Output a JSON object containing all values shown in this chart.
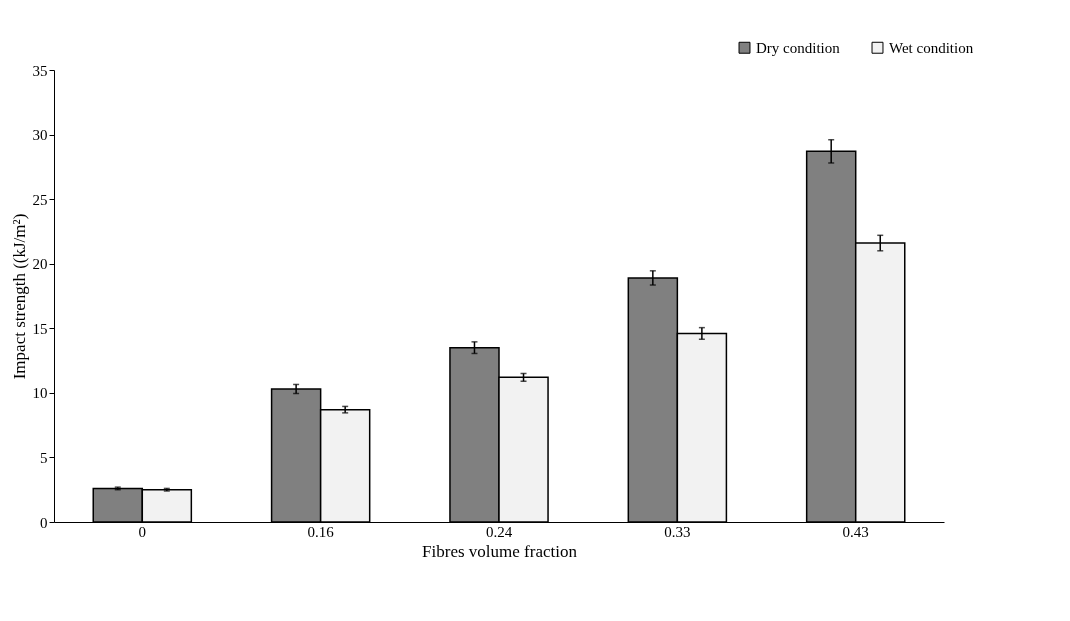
{
  "chart_data": {
    "type": "bar",
    "xlabel": "Fibres volume fraction",
    "ylabel": "Impact strength ((kJ/m²)",
    "categories": [
      "0",
      "0.16",
      "0.24",
      "0.33",
      "0.43"
    ],
    "series": [
      {
        "name": "Dry condition",
        "color": "#808080",
        "values": [
          2.6,
          10.3,
          13.5,
          18.9,
          28.7
        ],
        "errors": [
          0.1,
          0.35,
          0.45,
          0.55,
          0.9
        ]
      },
      {
        "name": "Wet condition",
        "color": "#f2f2f2",
        "values": [
          2.5,
          8.7,
          11.2,
          14.6,
          21.6
        ],
        "errors": [
          0.1,
          0.25,
          0.3,
          0.45,
          0.6
        ]
      }
    ],
    "ylim": [
      0,
      35
    ],
    "yticks": [
      0,
      5,
      10,
      15,
      20,
      25,
      30,
      35
    ],
    "grid": false,
    "legend": "top right"
  }
}
